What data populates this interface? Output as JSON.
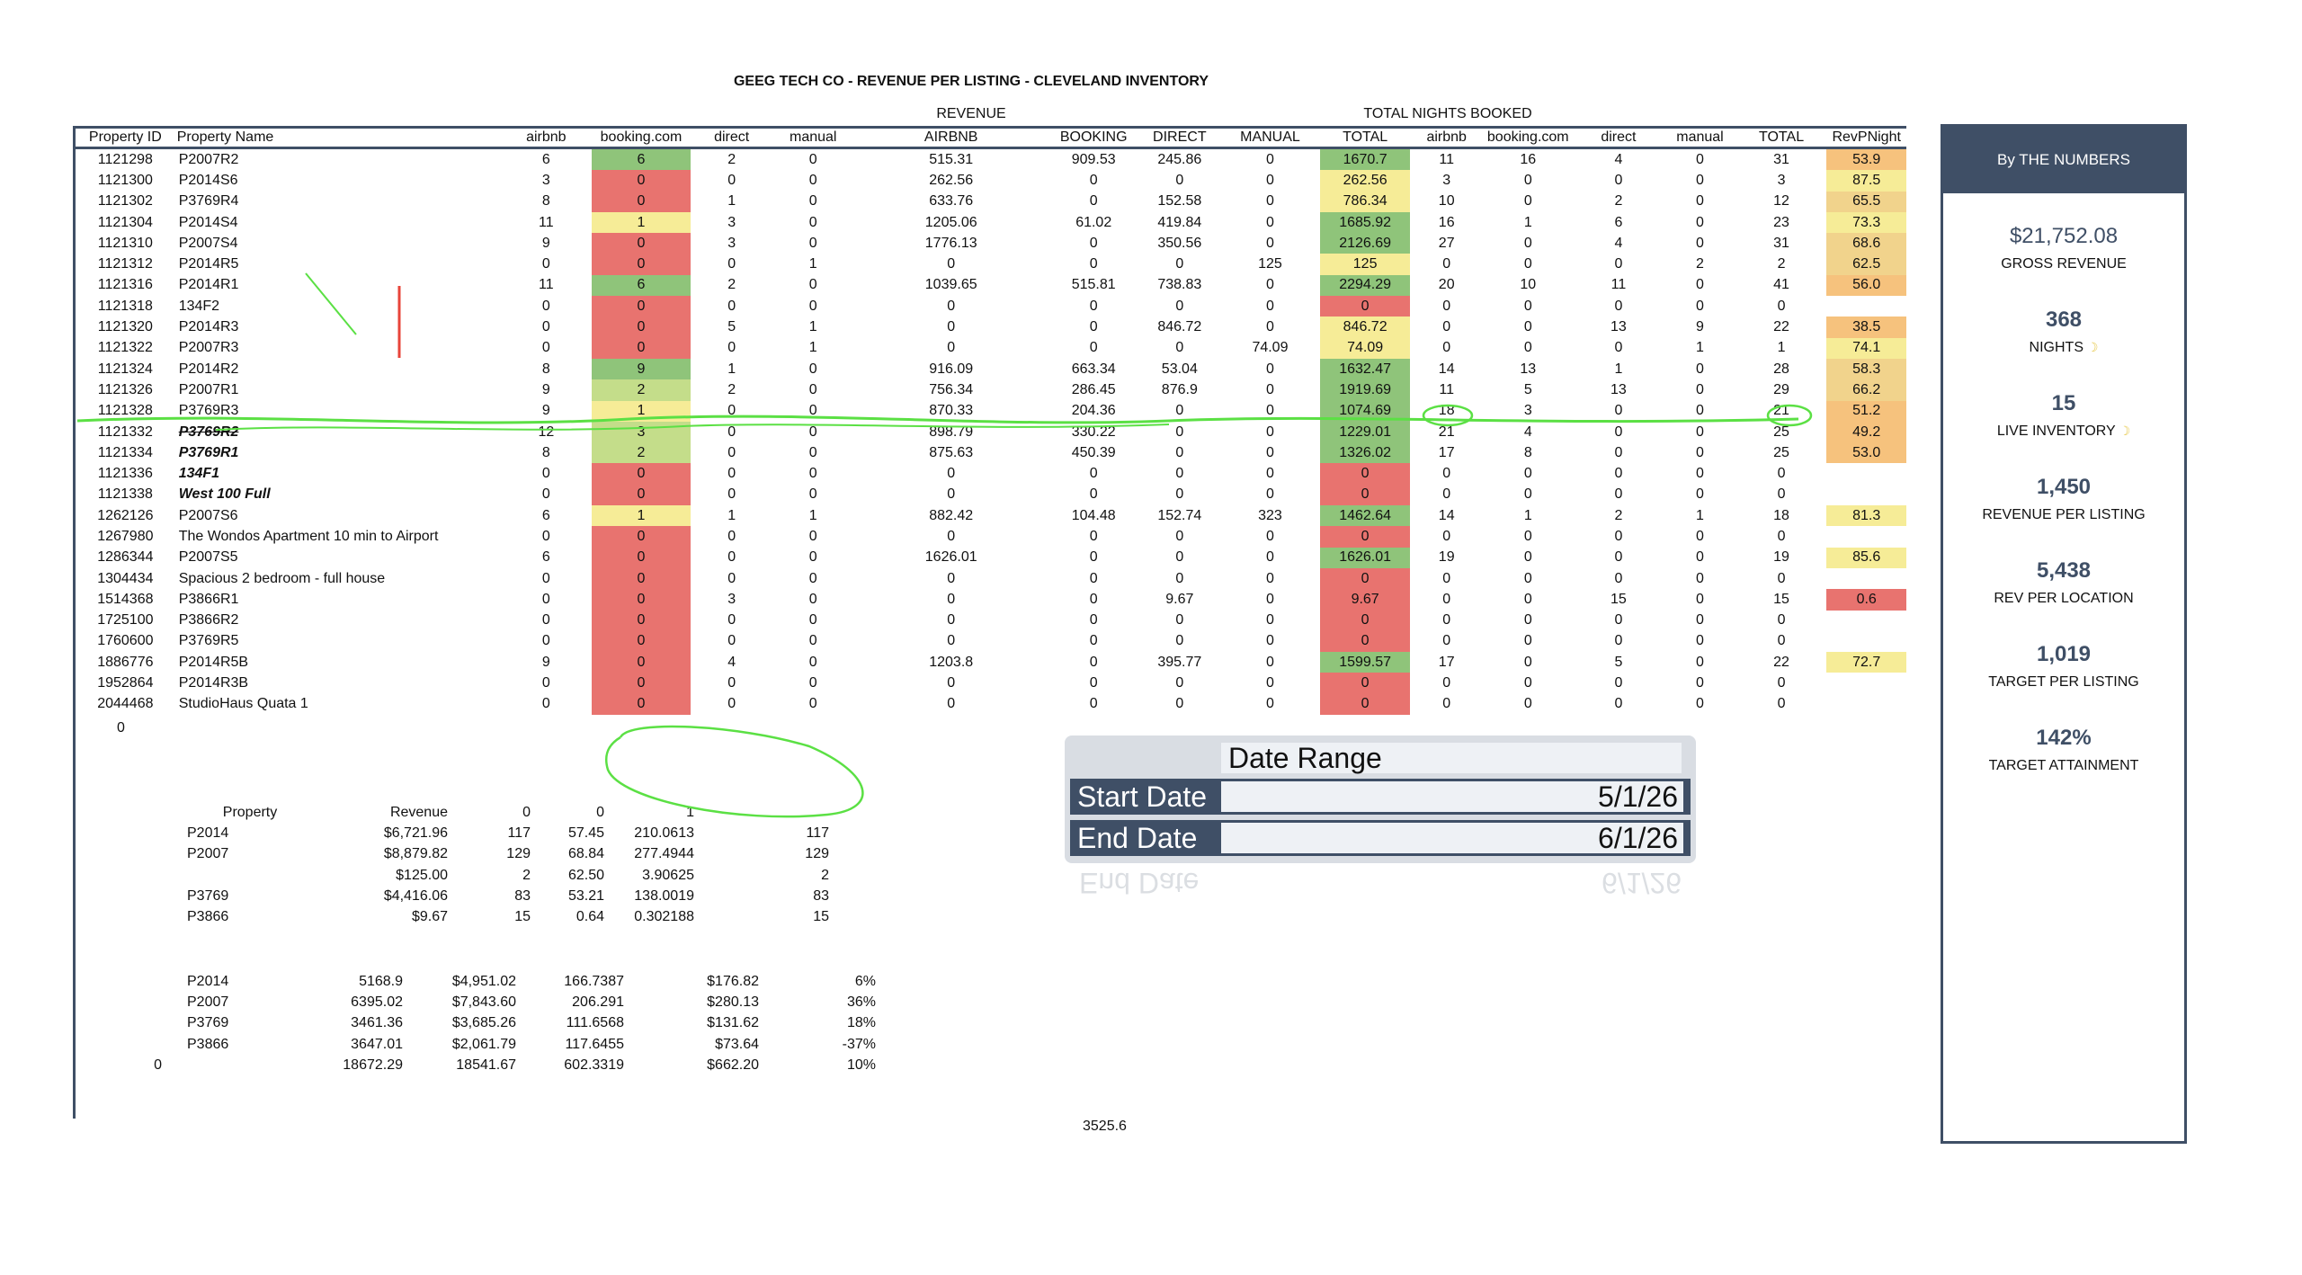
{
  "title": "GEEG TECH CO - REVENUE PER LISTING - CLEVELAND INVENTORY",
  "group_headers": {
    "revenue": "REVENUE",
    "nights": "TOTAL NIGHTS BOOKED"
  },
  "columns": [
    "Property ID",
    "Property Name",
    "airbnb",
    "booking.com",
    "direct",
    "manual",
    "AIRBNB",
    "BOOKING",
    "DIRECT",
    "MANUAL",
    "TOTAL",
    "airbnb",
    "booking.com",
    "direct",
    "manual",
    "TOTAL",
    "RevPNight"
  ],
  "colors": {
    "green": "#8fc47a",
    "lightgreen": "#c4dd8a",
    "yellow": "#f6ec97",
    "orange": "#f6c27d",
    "lightorange": "#f1d38c",
    "red": "#e8736f",
    "navy": "#3f4f66",
    "annotation": "#5be044"
  },
  "rows": [
    {
      "id": "1121298",
      "name": "P2007R2",
      "style": "",
      "bk": {
        "v": "6",
        "c": "green"
      },
      "c": [
        "6",
        "2",
        "0",
        "515.31",
        "909.53",
        "245.86",
        "0"
      ],
      "tot": {
        "v": "1670.7",
        "c": "green"
      },
      "n": [
        "11",
        "16",
        "4",
        "0",
        "31"
      ],
      "rpn": {
        "v": "53.9",
        "c": "orange"
      }
    },
    {
      "id": "1121300",
      "name": "P2014S6",
      "style": "",
      "bk": {
        "v": "0",
        "c": "red"
      },
      "c": [
        "3",
        "0",
        "0",
        "262.56",
        "0",
        "0",
        "0"
      ],
      "tot": {
        "v": "262.56",
        "c": "yellow"
      },
      "n": [
        "3",
        "0",
        "0",
        "0",
        "3"
      ],
      "rpn": {
        "v": "87.5",
        "c": "yellow"
      }
    },
    {
      "id": "1121302",
      "name": "P3769R4",
      "style": "",
      "bk": {
        "v": "0",
        "c": "red"
      },
      "c": [
        "8",
        "1",
        "0",
        "633.76",
        "0",
        "152.58",
        "0"
      ],
      "tot": {
        "v": "786.34",
        "c": "yellow"
      },
      "n": [
        "10",
        "0",
        "2",
        "0",
        "12"
      ],
      "rpn": {
        "v": "65.5",
        "c": "lightorange"
      }
    },
    {
      "id": "1121304",
      "name": "P2014S4",
      "style": "",
      "bk": {
        "v": "1",
        "c": "yellow"
      },
      "c": [
        "11",
        "3",
        "0",
        "1205.06",
        "61.02",
        "419.84",
        "0"
      ],
      "tot": {
        "v": "1685.92",
        "c": "green"
      },
      "n": [
        "16",
        "1",
        "6",
        "0",
        "23"
      ],
      "rpn": {
        "v": "73.3",
        "c": "yellow"
      }
    },
    {
      "id": "1121310",
      "name": "P2007S4",
      "style": "",
      "bk": {
        "v": "0",
        "c": "red"
      },
      "c": [
        "9",
        "3",
        "0",
        "1776.13",
        "0",
        "350.56",
        "0"
      ],
      "tot": {
        "v": "2126.69",
        "c": "green"
      },
      "n": [
        "27",
        "0",
        "4",
        "0",
        "31"
      ],
      "rpn": {
        "v": "68.6",
        "c": "lightorange"
      }
    },
    {
      "id": "1121312",
      "name": "P2014R5",
      "style": "",
      "bk": {
        "v": "0",
        "c": "red"
      },
      "c": [
        "0",
        "0",
        "1",
        "0",
        "0",
        "0",
        "125"
      ],
      "tot": {
        "v": "125",
        "c": "yellow"
      },
      "n": [
        "0",
        "0",
        "0",
        "2",
        "2"
      ],
      "rpn": {
        "v": "62.5",
        "c": "lightorange"
      }
    },
    {
      "id": "1121316",
      "name": "P2014R1",
      "style": "",
      "bk": {
        "v": "6",
        "c": "green"
      },
      "c": [
        "11",
        "2",
        "0",
        "1039.65",
        "515.81",
        "738.83",
        "0"
      ],
      "tot": {
        "v": "2294.29",
        "c": "green"
      },
      "n": [
        "20",
        "10",
        "11",
        "0",
        "41"
      ],
      "rpn": {
        "v": "56.0",
        "c": "orange"
      }
    },
    {
      "id": "1121318",
      "name": "134F2",
      "style": "",
      "bk": {
        "v": "0",
        "c": "red"
      },
      "c": [
        "0",
        "0",
        "0",
        "0",
        "0",
        "0",
        "0"
      ],
      "tot": {
        "v": "0",
        "c": "red"
      },
      "n": [
        "0",
        "0",
        "0",
        "0",
        "0"
      ],
      "rpn": {
        "v": "",
        "c": ""
      }
    },
    {
      "id": "1121320",
      "name": "P2014R3",
      "style": "",
      "bk": {
        "v": "0",
        "c": "red"
      },
      "c": [
        "0",
        "5",
        "1",
        "0",
        "0",
        "846.72",
        "0"
      ],
      "tot": {
        "v": "846.72",
        "c": "yellow"
      },
      "n": [
        "0",
        "0",
        "13",
        "9",
        "22"
      ],
      "rpn": {
        "v": "38.5",
        "c": "orange"
      }
    },
    {
      "id": "1121322",
      "name": "P2007R3",
      "style": "",
      "bk": {
        "v": "0",
        "c": "red"
      },
      "c": [
        "0",
        "0",
        "1",
        "0",
        "0",
        "0",
        "74.09"
      ],
      "tot": {
        "v": "74.09",
        "c": "yellow"
      },
      "n": [
        "0",
        "0",
        "0",
        "1",
        "1"
      ],
      "rpn": {
        "v": "74.1",
        "c": "yellow"
      }
    },
    {
      "id": "1121324",
      "name": "P2014R2",
      "style": "",
      "bk": {
        "v": "9",
        "c": "green"
      },
      "c": [
        "8",
        "1",
        "0",
        "916.09",
        "663.34",
        "53.04",
        "0"
      ],
      "tot": {
        "v": "1632.47",
        "c": "green"
      },
      "n": [
        "14",
        "13",
        "1",
        "0",
        "28"
      ],
      "rpn": {
        "v": "58.3",
        "c": "lightorange"
      }
    },
    {
      "id": "1121326",
      "name": "P2007R1",
      "style": "",
      "bk": {
        "v": "2",
        "c": "lightgreen"
      },
      "c": [
        "9",
        "2",
        "0",
        "756.34",
        "286.45",
        "876.9",
        "0"
      ],
      "tot": {
        "v": "1919.69",
        "c": "green"
      },
      "n": [
        "11",
        "5",
        "13",
        "0",
        "29"
      ],
      "rpn": {
        "v": "66.2",
        "c": "lightorange"
      }
    },
    {
      "id": "1121328",
      "name": "P3769R3",
      "style": "",
      "bk": {
        "v": "1",
        "c": "yellow"
      },
      "c": [
        "9",
        "0",
        "0",
        "870.33",
        "204.36",
        "0",
        "0"
      ],
      "tot": {
        "v": "1074.69",
        "c": "green"
      },
      "n": [
        "18",
        "3",
        "0",
        "0",
        "21"
      ],
      "rpn": {
        "v": "51.2",
        "c": "orange"
      }
    },
    {
      "id": "1121332",
      "name": "P3769R2",
      "style": "bi st",
      "bk": {
        "v": "3",
        "c": "lightgreen"
      },
      "c": [
        "12",
        "0",
        "0",
        "898.79",
        "330.22",
        "0",
        "0"
      ],
      "tot": {
        "v": "1229.01",
        "c": "green"
      },
      "n": [
        "21",
        "4",
        "0",
        "0",
        "25"
      ],
      "rpn": {
        "v": "49.2",
        "c": "orange"
      }
    },
    {
      "id": "1121334",
      "name": "P3769R1",
      "style": "bi",
      "bk": {
        "v": "2",
        "c": "lightgreen"
      },
      "c": [
        "8",
        "0",
        "0",
        "875.63",
        "450.39",
        "0",
        "0"
      ],
      "tot": {
        "v": "1326.02",
        "c": "green"
      },
      "n": [
        "17",
        "8",
        "0",
        "0",
        "25"
      ],
      "rpn": {
        "v": "53.0",
        "c": "orange"
      }
    },
    {
      "id": "1121336",
      "name": "134F1",
      "style": "bi",
      "bk": {
        "v": "0",
        "c": "red"
      },
      "c": [
        "0",
        "0",
        "0",
        "0",
        "0",
        "0",
        "0"
      ],
      "tot": {
        "v": "0",
        "c": "red"
      },
      "n": [
        "0",
        "0",
        "0",
        "0",
        "0"
      ],
      "rpn": {
        "v": "",
        "c": ""
      }
    },
    {
      "id": "1121338",
      "name": "West 100 Full",
      "style": "bi",
      "bk": {
        "v": "0",
        "c": "red"
      },
      "c": [
        "0",
        "0",
        "0",
        "0",
        "0",
        "0",
        "0"
      ],
      "tot": {
        "v": "0",
        "c": "red"
      },
      "n": [
        "0",
        "0",
        "0",
        "0",
        "0"
      ],
      "rpn": {
        "v": "",
        "c": ""
      }
    },
    {
      "id": "1262126",
      "name": "P2007S6",
      "style": "",
      "bk": {
        "v": "1",
        "c": "yellow"
      },
      "c": [
        "6",
        "1",
        "1",
        "882.42",
        "104.48",
        "152.74",
        "323"
      ],
      "tot": {
        "v": "1462.64",
        "c": "green"
      },
      "n": [
        "14",
        "1",
        "2",
        "1",
        "18"
      ],
      "rpn": {
        "v": "81.3",
        "c": "yellow"
      }
    },
    {
      "id": "1267980",
      "name": "The Wondos Apartment 10 min to Airport",
      "style": "",
      "bk": {
        "v": "0",
        "c": "red"
      },
      "c": [
        "0",
        "0",
        "0",
        "0",
        "0",
        "0",
        "0"
      ],
      "tot": {
        "v": "0",
        "c": "red"
      },
      "n": [
        "0",
        "0",
        "0",
        "0",
        "0"
      ],
      "rpn": {
        "v": "",
        "c": ""
      }
    },
    {
      "id": "1286344",
      "name": "P2007S5",
      "style": "",
      "bk": {
        "v": "0",
        "c": "red"
      },
      "c": [
        "6",
        "0",
        "0",
        "1626.01",
        "0",
        "0",
        "0"
      ],
      "tot": {
        "v": "1626.01",
        "c": "green"
      },
      "n": [
        "19",
        "0",
        "0",
        "0",
        "19"
      ],
      "rpn": {
        "v": "85.6",
        "c": "yellow"
      }
    },
    {
      "id": "1304434",
      "name": "Spacious 2 bedroom - full house",
      "style": "",
      "bk": {
        "v": "0",
        "c": "red"
      },
      "c": [
        "0",
        "0",
        "0",
        "0",
        "0",
        "0",
        "0"
      ],
      "tot": {
        "v": "0",
        "c": "red"
      },
      "n": [
        "0",
        "0",
        "0",
        "0",
        "0"
      ],
      "rpn": {
        "v": "",
        "c": ""
      }
    },
    {
      "id": "1514368",
      "name": "P3866R1",
      "style": "",
      "bk": {
        "v": "0",
        "c": "red"
      },
      "c": [
        "0",
        "3",
        "0",
        "0",
        "0",
        "9.67",
        "0"
      ],
      "tot": {
        "v": "9.67",
        "c": "red"
      },
      "n": [
        "0",
        "0",
        "15",
        "0",
        "15"
      ],
      "rpn": {
        "v": "0.6",
        "c": "red"
      }
    },
    {
      "id": "1725100",
      "name": "P3866R2",
      "style": "",
      "bk": {
        "v": "0",
        "c": "red"
      },
      "c": [
        "0",
        "0",
        "0",
        "0",
        "0",
        "0",
        "0"
      ],
      "tot": {
        "v": "0",
        "c": "red"
      },
      "n": [
        "0",
        "0",
        "0",
        "0",
        "0"
      ],
      "rpn": {
        "v": "",
        "c": ""
      }
    },
    {
      "id": "1760600",
      "name": "P3769R5",
      "style": "",
      "bk": {
        "v": "0",
        "c": "red"
      },
      "c": [
        "0",
        "0",
        "0",
        "0",
        "0",
        "0",
        "0"
      ],
      "tot": {
        "v": "0",
        "c": "red"
      },
      "n": [
        "0",
        "0",
        "0",
        "0",
        "0"
      ],
      "rpn": {
        "v": "",
        "c": ""
      }
    },
    {
      "id": "1886776",
      "name": "P2014R5B",
      "style": "",
      "bk": {
        "v": "0",
        "c": "red"
      },
      "c": [
        "9",
        "4",
        "0",
        "1203.8",
        "0",
        "395.77",
        "0"
      ],
      "tot": {
        "v": "1599.57",
        "c": "green"
      },
      "n": [
        "17",
        "0",
        "5",
        "0",
        "22"
      ],
      "rpn": {
        "v": "72.7",
        "c": "yellow"
      }
    },
    {
      "id": "1952864",
      "name": "P2014R3B",
      "style": "",
      "bk": {
        "v": "0",
        "c": "red"
      },
      "c": [
        "0",
        "0",
        "0",
        "0",
        "0",
        "0",
        "0"
      ],
      "tot": {
        "v": "0",
        "c": "red"
      },
      "n": [
        "0",
        "0",
        "0",
        "0",
        "0"
      ],
      "rpn": {
        "v": "",
        "c": ""
      }
    },
    {
      "id": "2044468",
      "name": "StudioHaus Quata 1",
      "style": "",
      "bk": {
        "v": "0",
        "c": "red"
      },
      "c": [
        "0",
        "0",
        "0",
        "0",
        "0",
        "0",
        "0"
      ],
      "tot": {
        "v": "0",
        "c": "red"
      },
      "n": [
        "0",
        "0",
        "0",
        "0",
        "0"
      ],
      "rpn": {
        "v": "",
        "c": ""
      }
    }
  ],
  "stray_zero": "0",
  "summary1": {
    "header": [
      "Property",
      "Revenue",
      "0",
      "0",
      "1",
      ""
    ],
    "rows": [
      [
        "P2014",
        "$6,721.96",
        "117",
        "57.45",
        "210.0613",
        "117"
      ],
      [
        "P2007",
        "$8,879.82",
        "129",
        "68.84",
        "277.4944",
        "129"
      ],
      [
        "",
        "$125.00",
        "2",
        "62.50",
        "3.90625",
        "2"
      ],
      [
        "P3769",
        "$4,416.06",
        "83",
        "53.21",
        "138.0019",
        "83"
      ],
      [
        "P3866",
        "$9.67",
        "15",
        "0.64",
        "0.302188",
        "15"
      ]
    ]
  },
  "summary2": {
    "rows": [
      [
        "",
        "P2014",
        "5168.9",
        "$4,951.02",
        "166.7387",
        "$176.82",
        "6%"
      ],
      [
        "",
        "P2007",
        "6395.02",
        "$7,843.60",
        "206.291",
        "$280.13",
        "36%"
      ],
      [
        "",
        "P3769",
        "3461.36",
        "$3,685.26",
        "111.6568",
        "$131.62",
        "18%"
      ],
      [
        "",
        "P3866",
        "3647.01",
        "$2,061.79",
        "117.6455",
        "$73.64",
        "-37%"
      ],
      [
        "0",
        "",
        "18672.29",
        "18541.67",
        "602.3319",
        "$662.20",
        "10%"
      ]
    ]
  },
  "bottom_note": "3525.6",
  "date_range": {
    "title": "Date Range",
    "start_label": "Start Date",
    "start_value": "5/1/26",
    "end_label": "End Date",
    "end_value": "6/1/26",
    "reflection": "End Date"
  },
  "panel": {
    "header": "By THE NUMBERS",
    "stats": [
      {
        "value": "$21,752.08",
        "label": "GROSS REVENUE",
        "moon": false
      },
      {
        "value": "368",
        "label": "NIGHTS",
        "moon": true
      },
      {
        "value": "15",
        "label": "LIVE INVENTORY",
        "moon": true
      },
      {
        "value": "1,450",
        "label": "REVENUE PER LISTING",
        "moon": false
      },
      {
        "value": "5,438",
        "label": "REV PER LOCATION",
        "moon": false
      },
      {
        "value": "1,019",
        "label": "TARGET PER LISTING",
        "moon": false
      },
      {
        "value": "142%",
        "label": "TARGET ATTAINMENT",
        "moon": false
      }
    ]
  }
}
